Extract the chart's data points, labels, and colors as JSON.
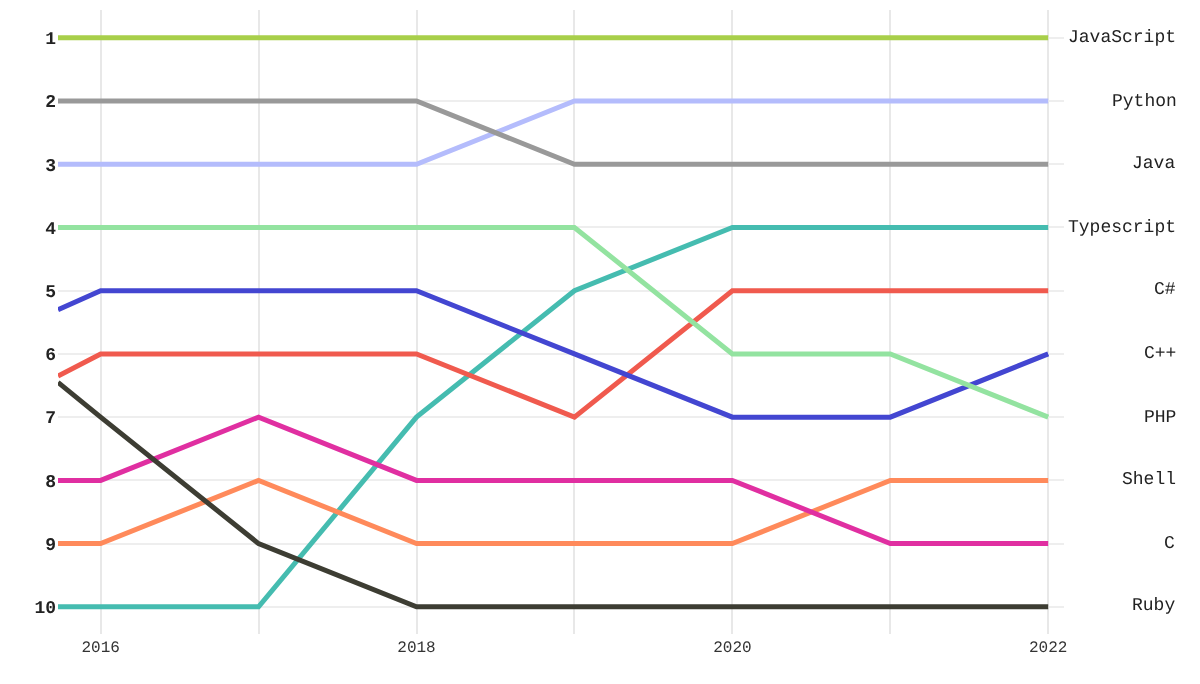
{
  "chart_data": {
    "type": "line",
    "x": [
      2015.73,
      2016,
      2017,
      2018,
      2019,
      2020,
      2021,
      2022
    ],
    "series": [
      {
        "name": "JavaScript",
        "color": "#a8cf4a",
        "values": [
          1,
          1,
          1,
          1,
          1,
          1,
          1,
          1
        ]
      },
      {
        "name": "Python",
        "color": "#b4bcfc",
        "values": [
          3,
          3,
          3,
          3,
          2,
          2,
          2,
          2
        ]
      },
      {
        "name": "Java",
        "color": "#999999",
        "values": [
          2,
          2,
          2,
          2,
          3,
          3,
          3,
          3
        ]
      },
      {
        "name": "Typescript",
        "color": "#45bcb0",
        "values": [
          10,
          10,
          10,
          7,
          5,
          4,
          4,
          4
        ]
      },
      {
        "name": "C#",
        "color": "#f05a4e",
        "values": [
          6.35,
          6,
          6,
          6,
          7,
          5,
          5,
          5
        ]
      },
      {
        "name": "C++",
        "color": "#4346d1",
        "values": [
          5.3,
          5,
          5,
          5,
          6,
          7,
          7,
          6
        ]
      },
      {
        "name": "PHP",
        "color": "#93e3a0",
        "values": [
          4,
          4,
          4,
          4,
          4,
          6,
          6,
          7
        ]
      },
      {
        "name": "Shell",
        "color": "#ff8a5b",
        "values": [
          9,
          9,
          8,
          9,
          9,
          9,
          8,
          8
        ]
      },
      {
        "name": "C",
        "color": "#e02fa1",
        "values": [
          8,
          8,
          7,
          8,
          8,
          8,
          9,
          9
        ]
      },
      {
        "name": "Ruby",
        "color": "#3d3d33",
        "values": [
          6.45,
          7,
          9,
          10,
          10,
          10,
          10,
          10
        ]
      }
    ],
    "xlim": [
      2015.73,
      2022.1
    ],
    "xticks": [
      2016,
      {
        "value": 2017,
        "label": null
      },
      2018,
      {
        "value": 2019,
        "label": null
      },
      2020,
      {
        "value": 2021,
        "label": null
      },
      2022
    ],
    "ylim": [
      10.43,
      0.56
    ],
    "yticks": [
      1,
      2,
      3,
      4,
      5,
      6,
      7,
      8,
      9,
      10
    ],
    "grid": true,
    "legend": "right",
    "line_style": "solid"
  }
}
